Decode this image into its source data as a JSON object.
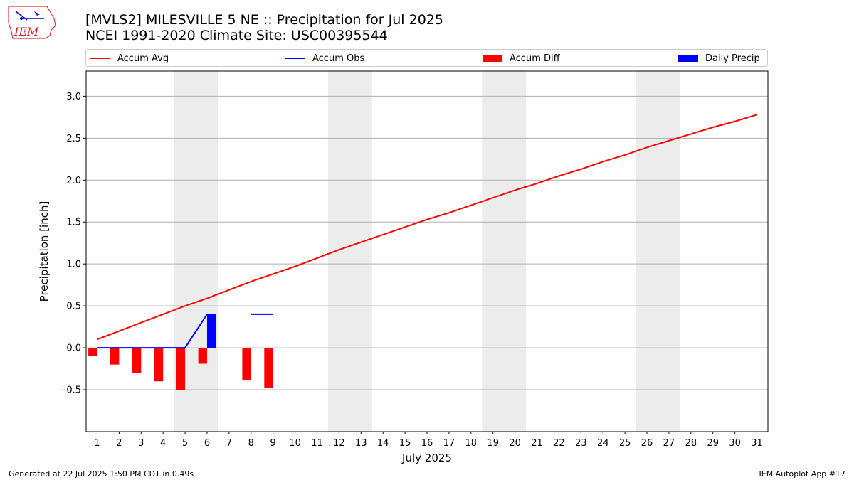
{
  "header": {
    "title_line1": "[MVLS2] MILESVILLE 5 NE :: Precipitation for Jul 2025",
    "title_line2": "NCEI 1991-2020 Climate Site: USC00395544",
    "logo_text": "IEM"
  },
  "legend": {
    "placement": "top, horizontal",
    "items": [
      {
        "label": "Accum Avg",
        "kind": "line",
        "color": "#ff0000"
      },
      {
        "label": "Accum Obs",
        "kind": "line",
        "color": "#0000ff"
      },
      {
        "label": "Accum Diff",
        "kind": "bar",
        "color": "#ff0000"
      },
      {
        "label": "Daily Precip",
        "kind": "bar",
        "color": "#0000ff"
      }
    ]
  },
  "footer": {
    "left": "Generated at 22 Jul 2025 1:50 PM CDT in 0.49s",
    "right": "IEM Autoplot App #17"
  },
  "chart_data": {
    "type": "line",
    "title": "[MVLS2] MILESVILLE 5 NE :: Precipitation for Jul 2025",
    "subtitle": "NCEI 1991-2020 Climate Site: USC00395544",
    "xlabel": "July 2025",
    "ylabel": "Precipitation [inch]",
    "xlim": [
      0.5,
      31.5
    ],
    "ylim": [
      -1.0,
      3.3
    ],
    "x_ticks": [
      1,
      2,
      3,
      4,
      5,
      6,
      7,
      8,
      9,
      10,
      11,
      12,
      13,
      14,
      15,
      16,
      17,
      18,
      19,
      20,
      21,
      22,
      23,
      24,
      25,
      26,
      27,
      28,
      29,
      30,
      31
    ],
    "y_ticks": [
      -0.5,
      0.0,
      0.5,
      1.0,
      1.5,
      2.0,
      2.5,
      3.0
    ],
    "y_tick_labels": [
      "−0.5",
      "0.0",
      "0.5",
      "1.0",
      "1.5",
      "2.0",
      "2.5",
      "3.0"
    ],
    "grid": "horizontal",
    "weekend_bands": [
      [
        4.5,
        6.5
      ],
      [
        11.5,
        13.5
      ],
      [
        18.5,
        20.5
      ],
      [
        25.5,
        27.5
      ]
    ],
    "series": [
      {
        "name": "Accum Avg",
        "type": "line",
        "color": "#ff0000",
        "x": [
          1,
          2,
          3,
          4,
          5,
          6,
          7,
          8,
          9,
          10,
          11,
          12,
          13,
          14,
          15,
          16,
          17,
          18,
          19,
          20,
          21,
          22,
          23,
          24,
          25,
          26,
          27,
          28,
          29,
          30,
          31
        ],
        "values": [
          0.1,
          0.2,
          0.3,
          0.4,
          0.5,
          0.59,
          0.69,
          0.79,
          0.88,
          0.97,
          1.07,
          1.17,
          1.26,
          1.35,
          1.44,
          1.53,
          1.61,
          1.7,
          1.79,
          1.88,
          1.96,
          2.05,
          2.13,
          2.22,
          2.3,
          2.39,
          2.47,
          2.55,
          2.63,
          2.7,
          2.78
        ]
      },
      {
        "name": "Accum Obs",
        "type": "line",
        "color": "#0000ff",
        "segments": [
          {
            "x": [
              1,
              2,
              3,
              4,
              5,
              6
            ],
            "values": [
              0,
              0,
              0,
              0,
              0,
              0.4
            ]
          },
          {
            "x": [
              8,
              9
            ],
            "values": [
              0.4,
              0.4
            ]
          }
        ]
      },
      {
        "name": "Accum Diff",
        "type": "bar",
        "color": "#ff0000",
        "x": [
          1,
          2,
          3,
          4,
          5,
          6,
          8,
          9
        ],
        "values": [
          -0.1,
          -0.2,
          -0.3,
          -0.4,
          -0.5,
          -0.19,
          -0.39,
          -0.48
        ]
      },
      {
        "name": "Daily Precip",
        "type": "bar",
        "color": "#0000ff",
        "x": [
          6
        ],
        "values": [
          0.4
        ]
      }
    ]
  }
}
